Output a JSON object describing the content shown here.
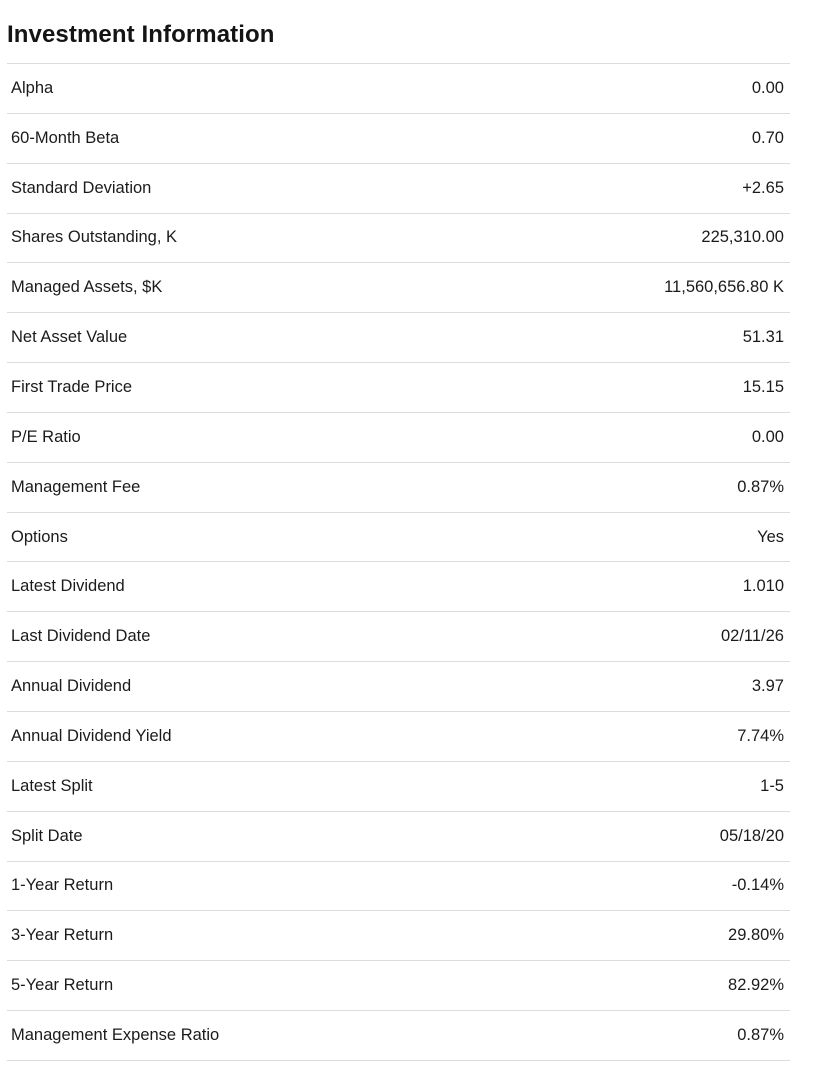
{
  "page": {
    "title": "Investment Information"
  },
  "table": {
    "rows": [
      {
        "label": "Alpha",
        "value": "0.00"
      },
      {
        "label": "60-Month Beta",
        "value": "0.70"
      },
      {
        "label": "Standard Deviation",
        "value": "+2.65"
      },
      {
        "label": "Shares Outstanding, K",
        "value": "225,310.00"
      },
      {
        "label": "Managed Assets, $K",
        "value": "11,560,656.80 K"
      },
      {
        "label": "Net Asset Value",
        "value": "51.31"
      },
      {
        "label": "First Trade Price",
        "value": "15.15"
      },
      {
        "label": "P/E Ratio",
        "value": "0.00"
      },
      {
        "label": "Management Fee",
        "value": "0.87%"
      },
      {
        "label": "Options",
        "value": "Yes"
      },
      {
        "label": "Latest Dividend",
        "value": "1.010"
      },
      {
        "label": "Last Dividend Date",
        "value": "02/11/26"
      },
      {
        "label": "Annual Dividend",
        "value": "3.97"
      },
      {
        "label": "Annual Dividend Yield",
        "value": "7.74%"
      },
      {
        "label": "Latest Split",
        "value": "1-5"
      },
      {
        "label": "Split Date",
        "value": "05/18/20"
      },
      {
        "label": "1-Year Return",
        "value": "-0.14%"
      },
      {
        "label": "3-Year Return",
        "value": "29.80%"
      },
      {
        "label": "5-Year Return",
        "value": "82.92%"
      },
      {
        "label": "Management Expense Ratio",
        "value": "0.87%"
      }
    ]
  },
  "colors": {
    "text": "#1b1b1b",
    "divider": "#dcdcdc",
    "background": "#ffffff"
  }
}
